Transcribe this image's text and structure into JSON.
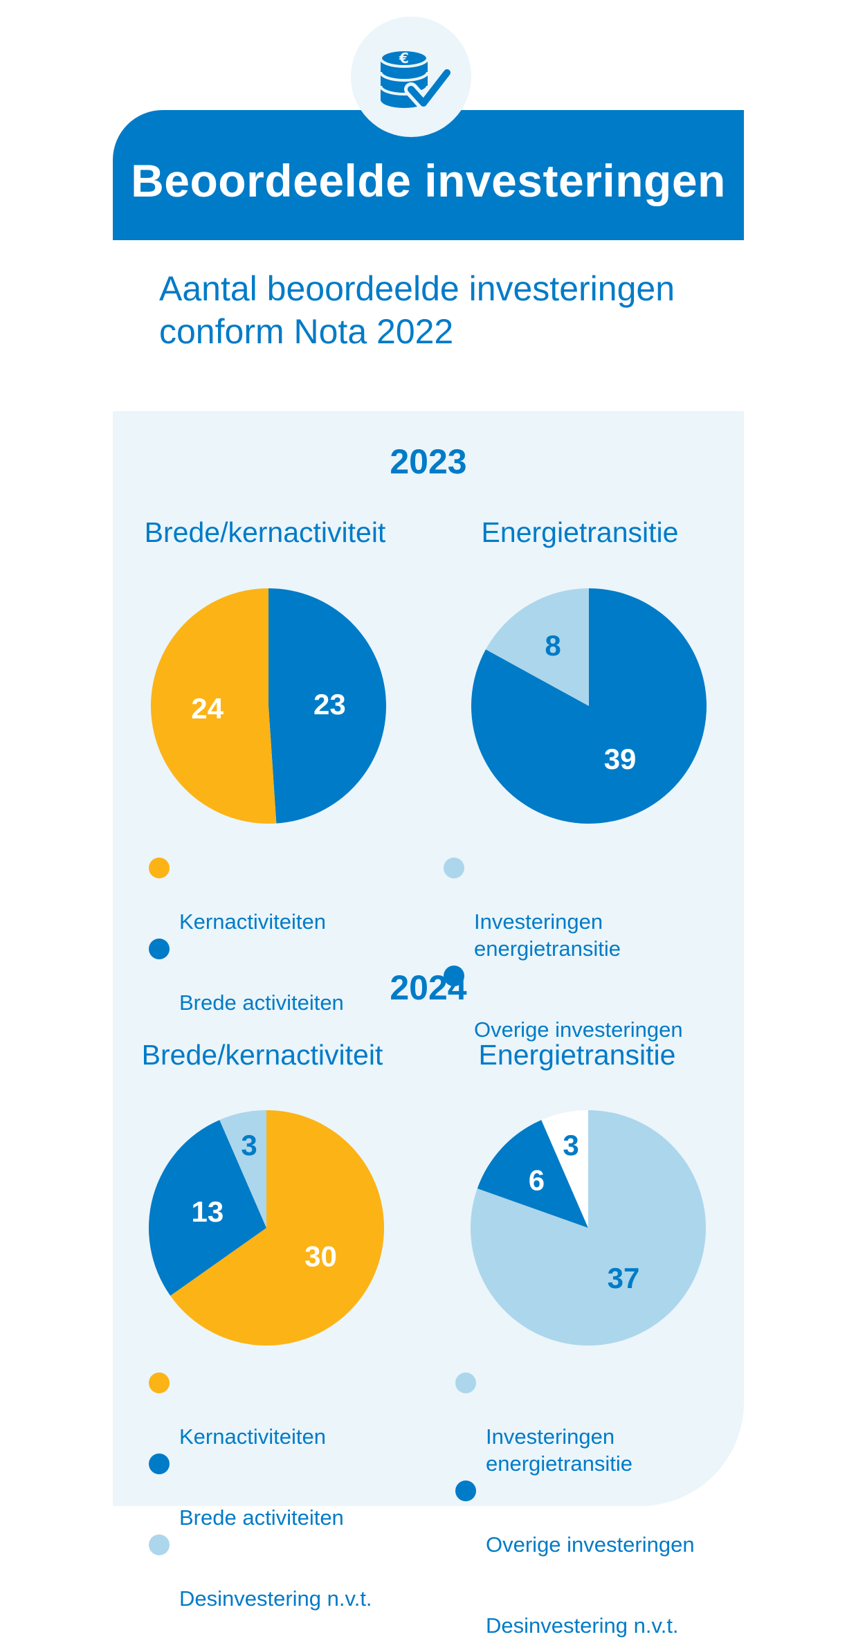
{
  "header": {
    "title": "Beoordeelde investeringen",
    "icon": "coins-checkmark-icon"
  },
  "subtitle": "Aantal beoordeelde investeringen\nconform Nota 2022",
  "colors": {
    "primary": "#007bc7",
    "kernactiviteiten": "#fcb316",
    "brede_activiteiten": "#007bc7",
    "light_blue": "#acd6eb",
    "white": "#ffffff",
    "panel": "#ebf5fa"
  },
  "sections": [
    {
      "year": "2023",
      "left_title": "Brede/kernactiviteit",
      "right_title": "Energietransitie",
      "left_legend": [
        "Kernactiviteiten",
        "Brede activiteiten"
      ],
      "right_legend": [
        "Investeringen\nenergietransitie",
        "Overige investeringen"
      ]
    },
    {
      "year": "2024",
      "left_title": "Brede/kernactiviteit",
      "right_title": "Energietransitie",
      "left_legend": [
        "Kernactiviteiten",
        "Brede activiteiten",
        "Desinvestering n.v.t."
      ],
      "right_legend": [
        "Investeringen\nenergietransitie",
        "Overige investeringen",
        "Desinvestering n.v.t."
      ]
    }
  ],
  "chart_data": [
    {
      "type": "pie",
      "title": "Brede/kernactiviteit",
      "year": "2023",
      "start_direction": "clockwise from top",
      "slices": [
        {
          "label": "Brede activiteiten",
          "value": 23,
          "color": "#007bc7",
          "label_color": "#ffffff"
        },
        {
          "label": "Kernactiviteiten",
          "value": 24,
          "color": "#fcb316",
          "label_color": "#ffffff"
        }
      ]
    },
    {
      "type": "pie",
      "title": "Energietransitie",
      "year": "2023",
      "start_direction": "clockwise from top",
      "slices": [
        {
          "label": "Overige investeringen",
          "value": 39,
          "color": "#007bc7",
          "label_color": "#ffffff"
        },
        {
          "label": "Investeringen energietransitie",
          "value": 8,
          "color": "#acd6eb",
          "label_color": "#007bc7"
        }
      ]
    },
    {
      "type": "pie",
      "title": "Brede/kernactiviteit",
      "year": "2024",
      "start_direction": "clockwise from top",
      "slices": [
        {
          "label": "Kernactiviteiten",
          "value": 30,
          "color": "#fcb316",
          "label_color": "#ffffff"
        },
        {
          "label": "Brede activiteiten",
          "value": 13,
          "color": "#007bc7",
          "label_color": "#ffffff"
        },
        {
          "label": "Desinvestering n.v.t.",
          "value": 3,
          "color": "#acd6eb",
          "label_color": "#007bc7"
        }
      ]
    },
    {
      "type": "pie",
      "title": "Energietransitie",
      "year": "2024",
      "start_direction": "clockwise from top",
      "slices": [
        {
          "label": "Investeringen energietransitie",
          "value": 37,
          "color": "#acd6eb",
          "label_color": "#007bc7"
        },
        {
          "label": "Overige investeringen",
          "value": 6,
          "color": "#007bc7",
          "label_color": "#ffffff"
        },
        {
          "label": "Desinvestering n.v.t.",
          "value": 3,
          "color": "#ffffff",
          "label_color": "#007bc7"
        }
      ]
    }
  ]
}
